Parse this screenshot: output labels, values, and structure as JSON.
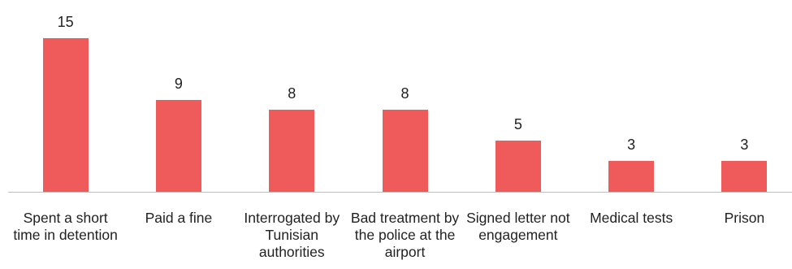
{
  "chart_data": {
    "type": "bar",
    "categories": [
      "Spent a short time in detention",
      "Paid a fine",
      "Interrogated by Tunisian authorities",
      "Bad treatment by the police at the airport",
      "Signed letter not engagement",
      "Medical tests",
      "Prison"
    ],
    "values": [
      15,
      9,
      8,
      8,
      5,
      3,
      3
    ],
    "color": "#ef5a5a"
  }
}
